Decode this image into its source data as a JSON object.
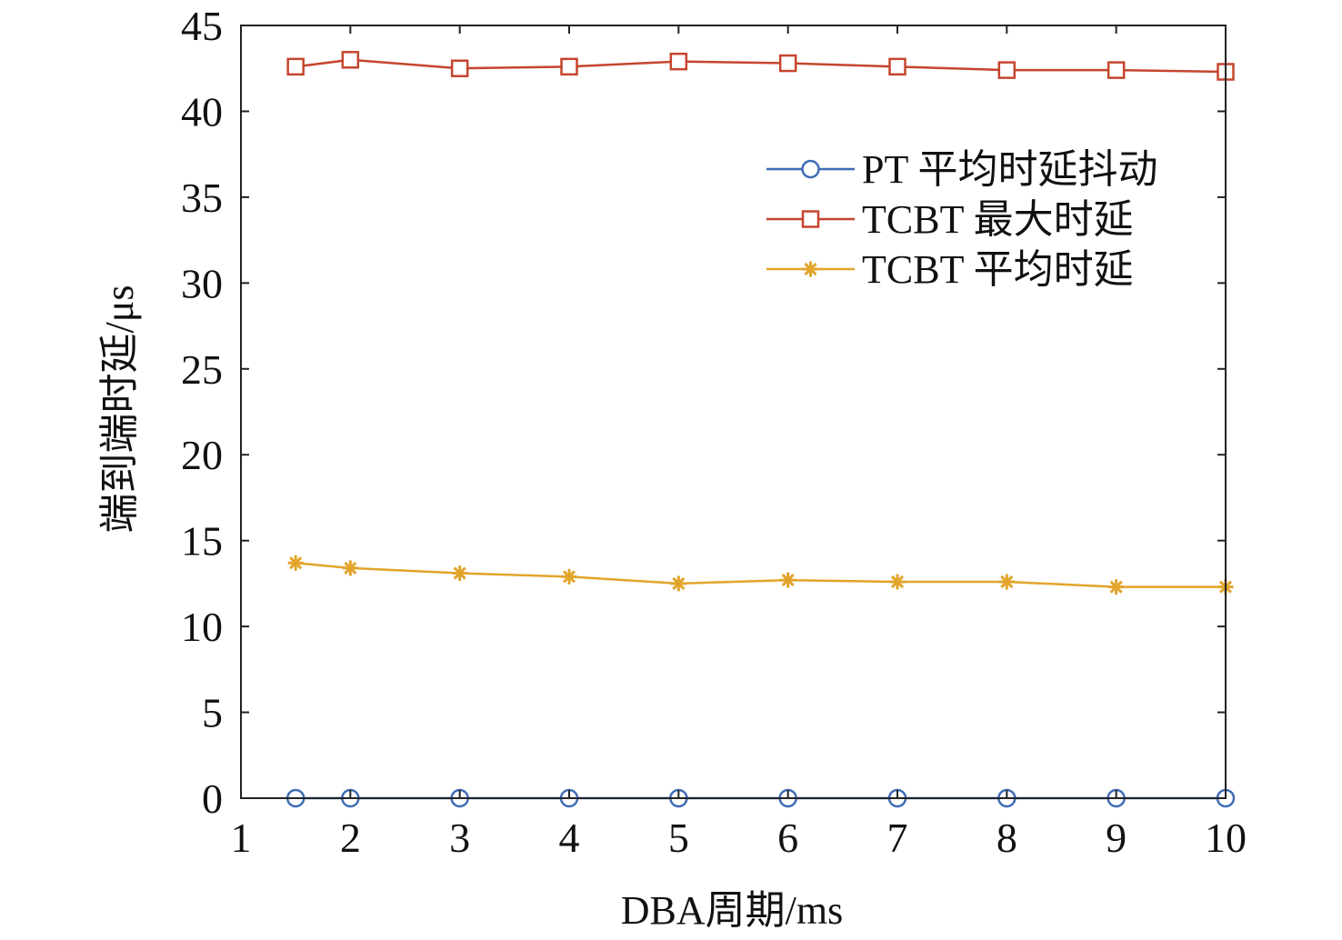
{
  "chart_data": {
    "type": "line",
    "title": "",
    "xlabel": "DBA周期/ms",
    "ylabel": "端到端时延/μs",
    "xlim": [
      1,
      10
    ],
    "ylim": [
      0,
      45
    ],
    "x_ticks": [
      1,
      2,
      3,
      4,
      5,
      6,
      7,
      8,
      9,
      10
    ],
    "y_ticks": [
      0,
      5,
      10,
      15,
      20,
      25,
      30,
      35,
      40,
      45
    ],
    "x": [
      1.5,
      2,
      3,
      4,
      5,
      6,
      7,
      8,
      9,
      10
    ],
    "legend_position": "upper-right",
    "series": [
      {
        "name": "PT 平均时延抖动",
        "color": "#3e6db5",
        "marker": "circle",
        "values": [
          0,
          0,
          0,
          0,
          0,
          0,
          0,
          0,
          0,
          0
        ]
      },
      {
        "name": "TCBT 最大时延",
        "color": "#c6452e",
        "marker": "square",
        "values": [
          42.6,
          43.0,
          42.5,
          42.6,
          42.9,
          42.8,
          42.6,
          42.4,
          42.4,
          42.3
        ]
      },
      {
        "name": "TCBT 平均时延",
        "color": "#e2a42a",
        "marker": "asterisk",
        "values": [
          13.7,
          13.4,
          13.1,
          12.9,
          12.5,
          12.7,
          12.6,
          12.6,
          12.3,
          12.3
        ]
      }
    ]
  }
}
